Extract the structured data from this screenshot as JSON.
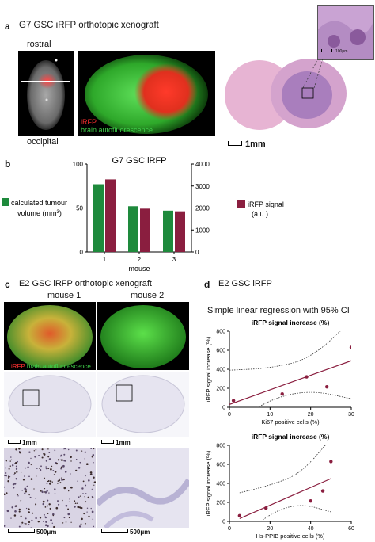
{
  "figure": {
    "panel_a": {
      "letter": "a",
      "title": "G7 GSC iRFP orthotopic xenograft",
      "label_top": "rostral",
      "label_bottom": "occipital",
      "legend_red": "iRFP",
      "legend_green": "brain autofluorescence",
      "scalebar_main": "1mm",
      "scalebar_inset": "100μm"
    },
    "panel_b": {
      "letter": "b"
    },
    "panel_c": {
      "letter": "c",
      "title": "E2 GSC iRFP orthotopic xenograft",
      "mouse1": "mouse 1",
      "mouse2": "mouse 2",
      "legend_red": "iRFP",
      "legend_green": "brain autofluorescence",
      "scalebar_1mm_a": "1mm",
      "scalebar_1mm_b": "1mm",
      "scalebar_500_a": "500μm",
      "scalebar_500_b": "500μm"
    },
    "panel_d": {
      "letter": "d",
      "title": "E2 GSC iRFP",
      "subtitle": "Simple linear regression with 95% CI"
    }
  },
  "chart_data": [
    {
      "type": "bar",
      "title": "G7 GSC iRFP",
      "categories": [
        "1",
        "2",
        "3"
      ],
      "xlabel": "mouse",
      "series": [
        {
          "name": "calculated tumour volume (mm3)",
          "axis": "left",
          "color": "#1e8a3c",
          "values": [
            77,
            52,
            47
          ]
        },
        {
          "name": "iRFP signal (a.u.)",
          "axis": "right",
          "color": "#8a1e3f",
          "values": [
            3300,
            1970,
            1850
          ]
        }
      ],
      "ylim_left": [
        0,
        100
      ],
      "yticks_left": [
        0,
        50,
        100
      ],
      "ylim_right": [
        0,
        4000
      ],
      "yticks_right": [
        0,
        1000,
        2000,
        3000,
        4000
      ],
      "legend_left_line1": "calculated tumour",
      "legend_left_line2": "volume (mm",
      "legend_left_sup": "3",
      "legend_left_close": ")",
      "legend_right_line1": "iRFP signal",
      "legend_right_line2": "(a.u.)"
    },
    {
      "type": "scatter",
      "title": "iRFP signal increase (%)",
      "xlabel": "Ki67 positive cells (%)",
      "ylabel": "iRFP signal increase (%)",
      "xlim": [
        0,
        30
      ],
      "xticks": [
        0,
        10,
        20,
        30
      ],
      "ylim": [
        0,
        800
      ],
      "yticks": [
        0,
        200,
        400,
        600,
        800
      ],
      "points": [
        [
          1,
          70
        ],
        [
          13,
          140
        ],
        [
          19,
          320
        ],
        [
          24,
          215
        ],
        [
          30,
          630
        ]
      ],
      "fit_line": [
        [
          0,
          30
        ],
        [
          30,
          490
        ]
      ],
      "ci_upper": [
        [
          0,
          390
        ],
        [
          10,
          410
        ],
        [
          20,
          510
        ],
        [
          30,
          910
        ]
      ],
      "ci_lower": [
        [
          0,
          -200
        ],
        [
          10,
          90
        ],
        [
          20,
          180
        ],
        [
          30,
          90
        ]
      ],
      "point_color": "#8a1e3f",
      "line_color": "#8a1e3f"
    },
    {
      "type": "scatter",
      "title": "iRFP signal increase (%)",
      "xlabel": "Hs-PPIB positive cells (%)",
      "ylabel": "iRFP signal increase (%)",
      "xlim": [
        0,
        60
      ],
      "xticks": [
        0,
        20,
        40,
        60
      ],
      "ylim": [
        0,
        800
      ],
      "yticks": [
        0,
        200,
        400,
        600,
        800
      ],
      "points": [
        [
          5,
          60
        ],
        [
          18,
          140
        ],
        [
          40,
          215
        ],
        [
          46,
          320
        ],
        [
          50,
          630
        ]
      ],
      "fit_line": [
        [
          5,
          30
        ],
        [
          50,
          450
        ]
      ],
      "ci_upper": [
        [
          5,
          300
        ],
        [
          20,
          380
        ],
        [
          35,
          500
        ],
        [
          50,
          870
        ]
      ],
      "ci_lower": [
        [
          5,
          -200
        ],
        [
          20,
          90
        ],
        [
          35,
          190
        ],
        [
          50,
          100
        ]
      ],
      "point_color": "#8a1e3f",
      "line_color": "#8a1e3f"
    }
  ]
}
